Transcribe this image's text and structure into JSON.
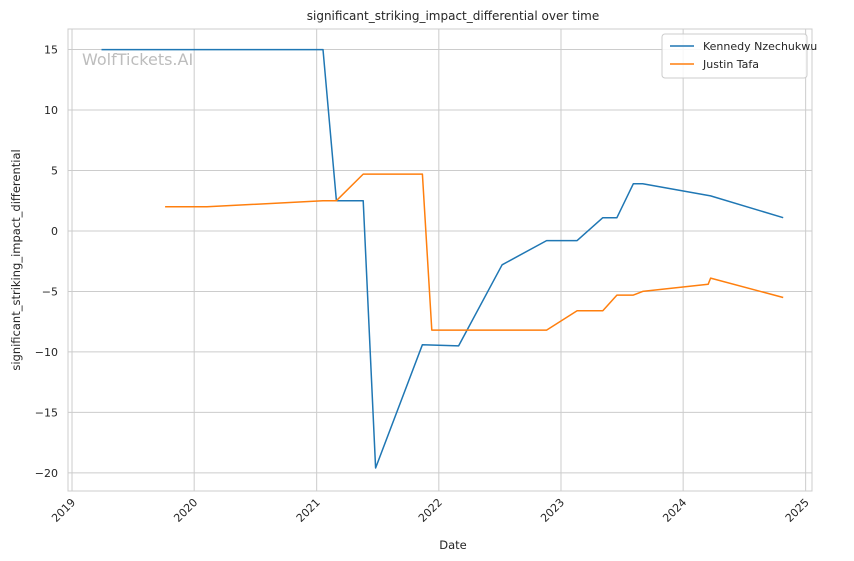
{
  "chart_data": {
    "type": "line",
    "title": "significant_striking_impact_differential over time",
    "xlabel": "Date",
    "ylabel": "significant_striking_impact_differential",
    "watermark": "WolfTickets.AI",
    "xlim": [
      "2018-12-20",
      "2025-01-20"
    ],
    "ylim": [
      -21.5,
      16.7
    ],
    "x_ticks": [
      "2019-01-01",
      "2020-01-01",
      "2021-01-01",
      "2022-01-01",
      "2023-01-01",
      "2024-01-01",
      "2025-01-01"
    ],
    "x_tick_labels": [
      "2019",
      "2020",
      "2021",
      "2022",
      "2023",
      "2024",
      "2025"
    ],
    "y_ticks": [
      15,
      10,
      5,
      0,
      -5,
      -10,
      -15,
      -20
    ],
    "y_tick_labels": [
      "15",
      "10",
      "5",
      "0",
      "−5",
      "−10",
      "−15",
      "−20"
    ],
    "grid": true,
    "legend_position": "top-right",
    "series": [
      {
        "name": "Kennedy Nzechukwu",
        "color": "#1f77b4",
        "points": [
          [
            "2019-03-30",
            15.0
          ],
          [
            "2021-01-20",
            15.0
          ],
          [
            "2021-03-01",
            2.5
          ],
          [
            "2021-05-20",
            2.5
          ],
          [
            "2021-06-26",
            -19.6
          ],
          [
            "2021-11-13",
            -9.4
          ],
          [
            "2022-03-01",
            -9.5
          ],
          [
            "2022-07-09",
            -2.8
          ],
          [
            "2022-11-19",
            -0.8
          ],
          [
            "2023-02-18",
            -0.8
          ],
          [
            "2023-05-06",
            1.1
          ],
          [
            "2023-06-17",
            1.1
          ],
          [
            "2023-08-05",
            3.9
          ],
          [
            "2023-09-02",
            3.9
          ],
          [
            "2024-03-23",
            2.9
          ],
          [
            "2024-10-26",
            1.1
          ]
        ]
      },
      {
        "name": "Justin Tafa",
        "color": "#ff7f0e",
        "points": [
          [
            "2019-10-06",
            2.0
          ],
          [
            "2020-02-08",
            2.0
          ],
          [
            "2021-01-20",
            2.5
          ],
          [
            "2021-03-01",
            2.5
          ],
          [
            "2021-05-20",
            4.7
          ],
          [
            "2021-11-13",
            4.7
          ],
          [
            "2021-12-11",
            -8.2
          ],
          [
            "2022-11-19",
            -8.2
          ],
          [
            "2023-02-18",
            -6.6
          ],
          [
            "2023-05-06",
            -6.6
          ],
          [
            "2023-06-17",
            -5.3
          ],
          [
            "2023-08-05",
            -5.3
          ],
          [
            "2023-09-02",
            -5.0
          ],
          [
            "2024-03-16",
            -4.4
          ],
          [
            "2024-03-23",
            -3.9
          ],
          [
            "2024-10-26",
            -5.5
          ]
        ]
      }
    ]
  }
}
